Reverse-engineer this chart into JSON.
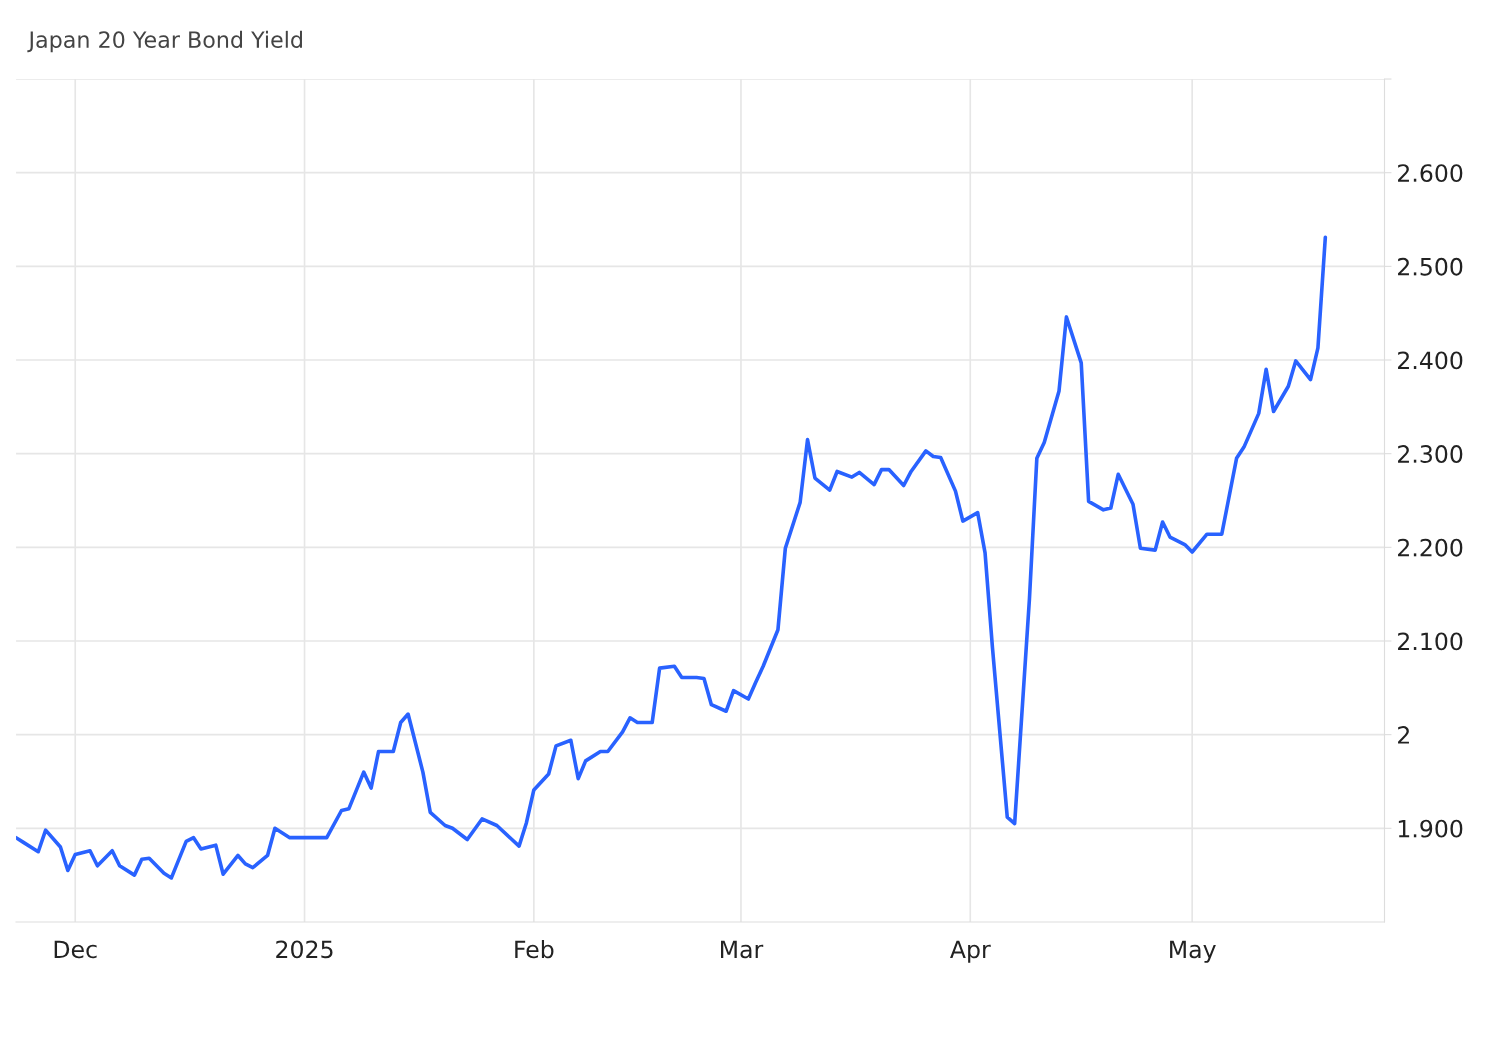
{
  "chart_data": {
    "type": "line",
    "title": "Japan 20 Year Bond Yield",
    "x": [
      "2024-11-23",
      "2024-11-24",
      "2024-11-26",
      "2024-11-27",
      "2024-11-29",
      "2024-11-30",
      "2024-12-01",
      "2024-12-03",
      "2024-12-04",
      "2024-12-06",
      "2024-12-07",
      "2024-12-09",
      "2024-12-10",
      "2024-12-11",
      "2024-12-13",
      "2024-12-14",
      "2024-12-16",
      "2024-12-17",
      "2024-12-18",
      "2024-12-20",
      "2024-12-21",
      "2024-12-23",
      "2024-12-24",
      "2024-12-25",
      "2024-12-27",
      "2024-12-28",
      "2024-12-30",
      "2025-01-04",
      "2025-01-06",
      "2025-01-07",
      "2025-01-09",
      "2025-01-10",
      "2025-01-11",
      "2025-01-13",
      "2025-01-14",
      "2025-01-15",
      "2025-01-17",
      "2025-01-18",
      "2025-01-20",
      "2025-01-21",
      "2025-01-23",
      "2025-01-25",
      "2025-01-27",
      "2025-01-30",
      "2025-01-31",
      "2025-02-01",
      "2025-02-03",
      "2025-02-04",
      "2025-02-06",
      "2025-02-07",
      "2025-02-08",
      "2025-02-10",
      "2025-02-11",
      "2025-02-13",
      "2025-02-14",
      "2025-02-15",
      "2025-02-17",
      "2025-02-18",
      "2025-02-20",
      "2025-02-21",
      "2025-02-23",
      "2025-02-24",
      "2025-02-25",
      "2025-02-27",
      "2025-02-28",
      "2025-03-02",
      "2025-03-03",
      "2025-03-04",
      "2025-03-06",
      "2025-03-07",
      "2025-03-09",
      "2025-03-10",
      "2025-03-11",
      "2025-03-13",
      "2025-03-14",
      "2025-03-16",
      "2025-03-17",
      "2025-03-19",
      "2025-03-20",
      "2025-03-21",
      "2025-03-23",
      "2025-03-24",
      "2025-03-26",
      "2025-03-27",
      "2025-03-28",
      "2025-03-30",
      "2025-03-31",
      "2025-04-02",
      "2025-04-03",
      "2025-04-04",
      "2025-04-06",
      "2025-04-07",
      "2025-04-09",
      "2025-04-10",
      "2025-04-11",
      "2025-04-13",
      "2025-04-14",
      "2025-04-16",
      "2025-04-17",
      "2025-04-19",
      "2025-04-20",
      "2025-04-21",
      "2025-04-23",
      "2025-04-24",
      "2025-04-26",
      "2025-04-27",
      "2025-04-28",
      "2025-04-30",
      "2025-05-01",
      "2025-05-03",
      "2025-05-04",
      "2025-05-05",
      "2025-05-07",
      "2025-05-08",
      "2025-05-10",
      "2025-05-11",
      "2025-05-12",
      "2025-05-14",
      "2025-05-15",
      "2025-05-17",
      "2025-05-18",
      "2025-05-19"
    ],
    "series": [
      {
        "color": "#2962ff",
        "values": [
          1.89,
          1.885,
          1.875,
          1.898,
          1.88,
          1.855,
          1.872,
          1.876,
          1.86,
          1.876,
          1.86,
          1.85,
          1.867,
          1.868,
          1.852,
          1.847,
          1.886,
          1.89,
          1.878,
          1.882,
          1.851,
          1.871,
          1.862,
          1.858,
          1.871,
          1.9,
          1.89,
          1.89,
          1.919,
          1.921,
          1.96,
          1.943,
          1.982,
          1.982,
          2.013,
          2.022,
          1.96,
          1.917,
          1.903,
          1.9,
          1.888,
          1.91,
          1.903,
          1.881,
          1.906,
          1.941,
          1.958,
          1.988,
          1.994,
          1.953,
          1.972,
          1.982,
          1.982,
          2.003,
          2.018,
          2.013,
          2.013,
          2.071,
          2.073,
          2.061,
          2.061,
          2.06,
          2.032,
          2.025,
          2.047,
          2.038,
          2.056,
          2.073,
          2.112,
          2.199,
          2.248,
          2.315,
          2.274,
          2.261,
          2.281,
          2.275,
          2.28,
          2.267,
          2.283,
          2.283,
          2.266,
          2.281,
          2.303,
          2.297,
          2.296,
          2.26,
          2.228,
          2.237,
          2.194,
          2.093,
          1.912,
          1.905,
          2.145,
          2.295,
          2.312,
          2.367,
          2.446,
          2.397,
          2.249,
          2.24,
          2.242,
          2.278,
          2.246,
          2.199,
          2.197,
          2.227,
          2.211,
          2.203,
          2.195,
          2.214,
          2.214,
          2.214,
          2.295,
          2.307,
          2.343,
          2.39,
          2.345,
          2.372,
          2.399,
          2.379,
          2.413,
          2.531
        ]
      }
    ],
    "xlim": [
      "2024-11-23",
      "2025-05-27"
    ],
    "xticks": [
      {
        "value": "2024-12-01",
        "label": "Dec"
      },
      {
        "value": "2025-01-01",
        "label": "2025"
      },
      {
        "value": "2025-02-01",
        "label": "Feb"
      },
      {
        "value": "2025-03-01",
        "label": "Mar"
      },
      {
        "value": "2025-04-01",
        "label": "Apr"
      },
      {
        "value": "2025-05-01",
        "label": "May"
      }
    ],
    "ylim": [
      1.8,
      2.7
    ],
    "yticks": [
      {
        "value": 1.9,
        "label": "1.900"
      },
      2,
      {
        "value": 2.1,
        "label": "2.100"
      },
      {
        "value": 2.2,
        "label": "2.200"
      },
      {
        "value": 2.3,
        "label": "2.300"
      },
      {
        "value": 2.4,
        "label": "2.400"
      },
      {
        "value": 2.5,
        "label": "2.500"
      },
      {
        "value": 2.6,
        "label": "2.600"
      },
      {
        "value": 2.7,
        "label": null
      }
    ],
    "grid": true
  }
}
